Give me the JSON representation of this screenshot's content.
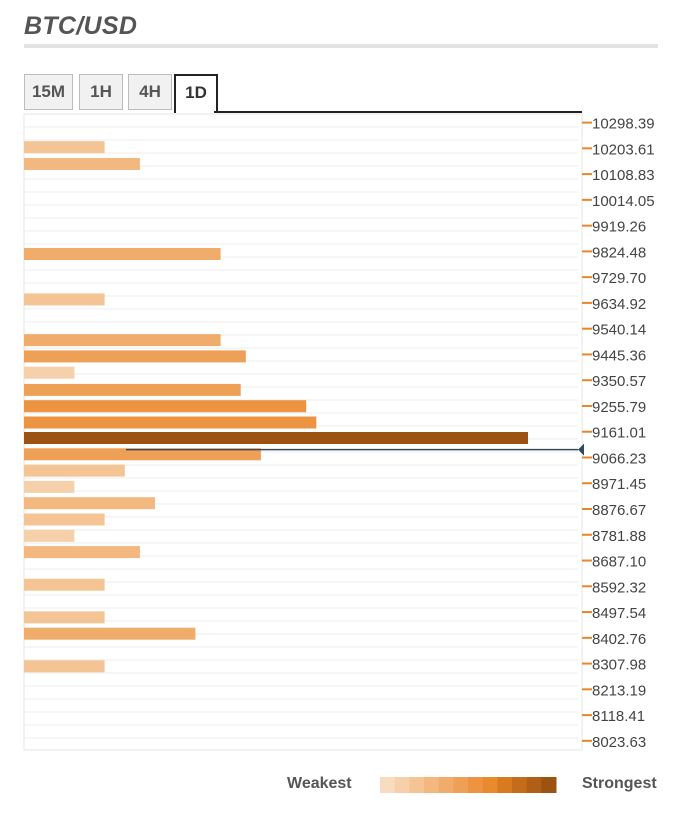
{
  "header": {
    "title": "BTC/USD"
  },
  "tabs": [
    {
      "label": "15M",
      "active": false
    },
    {
      "label": "1H",
      "active": false
    },
    {
      "label": "4H",
      "active": false
    },
    {
      "label": "1D",
      "active": true
    }
  ],
  "legend": {
    "weakest_label": "Weakest",
    "strongest_label": "Strongest",
    "scale_colors": [
      "#f8dcbf",
      "#f6d0aa",
      "#f4c495",
      "#f2b880",
      "#f0ac6b",
      "#eea056",
      "#ec9441",
      "#ea8a2e",
      "#d87a20",
      "#c46c1a",
      "#b05f16",
      "#9c5312"
    ]
  },
  "chart_data": {
    "type": "bar",
    "orientation": "horizontal",
    "title": "BTC/USD",
    "timeframe": "1D",
    "current_price": 9095,
    "price_ticks": [
      "10298.39",
      "10203.61",
      "10108.83",
      "10014.05",
      "9919.26",
      "9824.48",
      "9729.70",
      "9634.92",
      "9540.14",
      "9445.36",
      "9350.57",
      "9255.79",
      "9161.01",
      "9066.23",
      "8971.45",
      "8876.67",
      "8781.88",
      "8687.10",
      "8592.32",
      "8497.54",
      "8402.76",
      "8307.98",
      "8213.19",
      "8118.41",
      "8023.63"
    ],
    "ylim": [
      7990,
      10330
    ],
    "strength_max": 10,
    "bars": [
      {
        "price": 10208,
        "strength": 1.6
      },
      {
        "price": 10146,
        "strength": 2.3
      },
      {
        "price": 9815,
        "strength": 3.9
      },
      {
        "price": 9648,
        "strength": 1.6
      },
      {
        "price": 9498,
        "strength": 3.9
      },
      {
        "price": 9438,
        "strength": 4.4
      },
      {
        "price": 9378,
        "strength": 1.0
      },
      {
        "price": 9315,
        "strength": 4.3
      },
      {
        "price": 9255,
        "strength": 5.6
      },
      {
        "price": 9195,
        "strength": 5.8
      },
      {
        "price": 9138,
        "strength": 10.0
      },
      {
        "price": 9078,
        "strength": 4.7
      },
      {
        "price": 9018,
        "strength": 2.0
      },
      {
        "price": 8958,
        "strength": 1.0
      },
      {
        "price": 8898,
        "strength": 2.6
      },
      {
        "price": 8838,
        "strength": 1.6
      },
      {
        "price": 8778,
        "strength": 1.0
      },
      {
        "price": 8718,
        "strength": 2.3
      },
      {
        "price": 8598,
        "strength": 1.6
      },
      {
        "price": 8478,
        "strength": 1.6
      },
      {
        "price": 8418,
        "strength": 3.4
      },
      {
        "price": 8298,
        "strength": 1.6
      }
    ]
  }
}
